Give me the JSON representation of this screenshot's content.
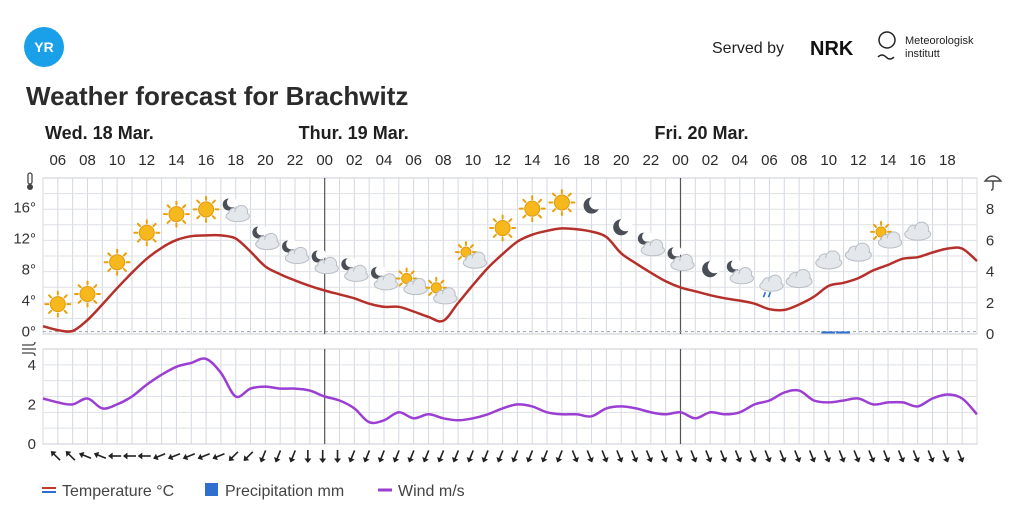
{
  "header": {
    "logo_text": "YR",
    "served_by": "Served by",
    "nrk_logo": "NRK",
    "met_line1": "Meteorologisk",
    "met_line2": "institutt"
  },
  "chart_data": {
    "type": "line",
    "title": "Weather forecast for Brachwitz",
    "days": [
      {
        "label": "Wed. 18 Mar.",
        "hour": 5
      },
      {
        "label": "Thur. 19 Mar.",
        "hour": 24
      },
      {
        "label": "Fri. 20 Mar.",
        "hour": 48
      }
    ],
    "x_tick_labels": [
      "06",
      "08",
      "10",
      "12",
      "14",
      "16",
      "18",
      "20",
      "22",
      "00",
      "02",
      "04",
      "06",
      "08",
      "10",
      "12",
      "14",
      "16",
      "18",
      "20",
      "22",
      "00",
      "02",
      "04",
      "06",
      "08",
      "10",
      "12",
      "14",
      "16",
      "18"
    ],
    "temp_axis": {
      "ticks": [
        0,
        4,
        8,
        12,
        16
      ],
      "labels": [
        "0°",
        "4°",
        "8°",
        "12°",
        "16°"
      ],
      "range": [
        -0.3,
        19.8
      ]
    },
    "precip_axis": {
      "ticks": [
        0,
        2,
        4,
        6,
        8
      ],
      "labels": [
        "0",
        "2",
        "4",
        "6",
        "8"
      ]
    },
    "wind_axis": {
      "ticks": [
        0,
        2,
        4
      ],
      "labels": [
        "0",
        "2",
        "4"
      ],
      "range": [
        0,
        4.8
      ]
    },
    "series": [
      {
        "name": "Temperature °C",
        "color": "#b5302b",
        "points": [
          [
            5,
            0.7
          ],
          [
            6,
            0.2
          ],
          [
            7,
            0.1
          ],
          [
            8,
            1.5
          ],
          [
            9,
            3.5
          ],
          [
            10,
            5.6
          ],
          [
            11,
            7.6
          ],
          [
            12,
            9.4
          ],
          [
            13,
            10.8
          ],
          [
            14,
            11.8
          ],
          [
            15,
            12.3
          ],
          [
            16,
            12.4
          ],
          [
            17,
            12.4
          ],
          [
            18,
            12
          ],
          [
            19,
            10.3
          ],
          [
            20,
            8.4
          ],
          [
            21,
            7.4
          ],
          [
            22,
            6.6
          ],
          [
            23,
            5.9
          ],
          [
            24,
            5.3
          ],
          [
            25,
            4.8
          ],
          [
            26,
            4.3
          ],
          [
            27,
            3.6
          ],
          [
            28,
            3.2
          ],
          [
            29,
            3.2
          ],
          [
            30,
            2.6
          ],
          [
            31,
            1.9
          ],
          [
            32,
            1.4
          ],
          [
            33,
            3.7
          ],
          [
            34,
            6
          ],
          [
            35,
            8.2
          ],
          [
            36,
            10
          ],
          [
            37,
            11.6
          ],
          [
            38,
            12.5
          ],
          [
            39,
            13
          ],
          [
            40,
            13.3
          ],
          [
            41,
            13.2
          ],
          [
            42,
            12.9
          ],
          [
            43,
            12.2
          ],
          [
            44,
            10.1
          ],
          [
            45,
            8.8
          ],
          [
            46,
            7.6
          ],
          [
            47,
            6.5
          ],
          [
            48,
            5.7
          ],
          [
            49,
            5.2
          ],
          [
            50,
            4.7
          ],
          [
            51,
            4.3
          ],
          [
            52,
            4
          ],
          [
            53,
            3.6
          ],
          [
            54,
            2.9
          ],
          [
            55,
            2.8
          ],
          [
            56,
            3.5
          ],
          [
            57,
            4.5
          ],
          [
            58,
            5.9
          ],
          [
            59,
            6.3
          ],
          [
            60,
            6.9
          ],
          [
            61,
            7.9
          ],
          [
            62,
            8.6
          ],
          [
            63,
            9.4
          ],
          [
            64,
            9.6
          ],
          [
            65,
            10.2
          ],
          [
            66,
            10.7
          ],
          [
            67,
            10.7
          ],
          [
            68,
            9.1
          ]
        ]
      },
      {
        "name": "Precipitation mm",
        "color": "#2f6fd0",
        "points": [
          [
            58,
            0.1
          ],
          [
            59,
            0.1
          ]
        ]
      },
      {
        "name": "Wind m/s",
        "color": "#9b3fd3",
        "points": [
          [
            5,
            2.3
          ],
          [
            6,
            2.1
          ],
          [
            7,
            2
          ],
          [
            8,
            2.3
          ],
          [
            9,
            1.8
          ],
          [
            10,
            2
          ],
          [
            11,
            2.4
          ],
          [
            12,
            3
          ],
          [
            13,
            3.5
          ],
          [
            14,
            3.9
          ],
          [
            15,
            4.1
          ],
          [
            16,
            4.3
          ],
          [
            17,
            3.6
          ],
          [
            18,
            2.4
          ],
          [
            19,
            2.8
          ],
          [
            20,
            2.9
          ],
          [
            21,
            2.8
          ],
          [
            22,
            2.8
          ],
          [
            23,
            2.7
          ],
          [
            24,
            2.4
          ],
          [
            25,
            2.2
          ],
          [
            26,
            1.8
          ],
          [
            27,
            1.1
          ],
          [
            28,
            1.2
          ],
          [
            29,
            1.6
          ],
          [
            30,
            1.3
          ],
          [
            31,
            1.5
          ],
          [
            32,
            1.3
          ],
          [
            33,
            1.2
          ],
          [
            34,
            1.3
          ],
          [
            35,
            1.5
          ],
          [
            36,
            1.8
          ],
          [
            37,
            2
          ],
          [
            38,
            1.9
          ],
          [
            39,
            1.6
          ],
          [
            40,
            1.5
          ],
          [
            41,
            1.5
          ],
          [
            42,
            1.4
          ],
          [
            43,
            1.8
          ],
          [
            44,
            1.9
          ],
          [
            45,
            1.8
          ],
          [
            46,
            1.6
          ],
          [
            47,
            1.5
          ],
          [
            48,
            1.6
          ],
          [
            49,
            1.3
          ],
          [
            50,
            1.6
          ],
          [
            51,
            1.5
          ],
          [
            52,
            1.6
          ],
          [
            53,
            2
          ],
          [
            54,
            2.2
          ],
          [
            55,
            2.6
          ],
          [
            56,
            2.7
          ],
          [
            57,
            2.2
          ],
          [
            58,
            2.1
          ],
          [
            59,
            2.2
          ],
          [
            60,
            2.3
          ],
          [
            61,
            2
          ],
          [
            62,
            2.1
          ],
          [
            63,
            2.1
          ],
          [
            64,
            1.9
          ],
          [
            65,
            2.3
          ],
          [
            66,
            2.5
          ],
          [
            67,
            2.3
          ],
          [
            68,
            1.5
          ]
        ]
      }
    ],
    "weather_icons": [
      {
        "hour": 6,
        "symbol": "sun"
      },
      {
        "hour": 8,
        "symbol": "sun"
      },
      {
        "hour": 10,
        "symbol": "sun"
      },
      {
        "hour": 12,
        "symbol": "sun"
      },
      {
        "hour": 14,
        "symbol": "sun"
      },
      {
        "hour": 16,
        "symbol": "sun"
      },
      {
        "hour": 18,
        "symbol": "moon-cloud"
      },
      {
        "hour": 20,
        "symbol": "moon-cloud"
      },
      {
        "hour": 22,
        "symbol": "moon-cloud"
      },
      {
        "hour": 24,
        "symbol": "moon-cloud"
      },
      {
        "hour": 26,
        "symbol": "moon-cloud"
      },
      {
        "hour": 28,
        "symbol": "moon-cloud"
      },
      {
        "hour": 30,
        "symbol": "sun-cloud"
      },
      {
        "hour": 32,
        "symbol": "sun-cloud"
      },
      {
        "hour": 34,
        "symbol": "sun-cloud"
      },
      {
        "hour": 36,
        "symbol": "sun"
      },
      {
        "hour": 38,
        "symbol": "sun"
      },
      {
        "hour": 40,
        "symbol": "sun"
      },
      {
        "hour": 42,
        "symbol": "moon"
      },
      {
        "hour": 44,
        "symbol": "moon"
      },
      {
        "hour": 46,
        "symbol": "moon-cloud"
      },
      {
        "hour": 48,
        "symbol": "moon-cloud"
      },
      {
        "hour": 50,
        "symbol": "moon"
      },
      {
        "hour": 52,
        "symbol": "moon-cloud"
      },
      {
        "hour": 54,
        "symbol": "cloud-rain"
      },
      {
        "hour": 56,
        "symbol": "cloud"
      },
      {
        "hour": 58,
        "symbol": "cloud"
      },
      {
        "hour": 60,
        "symbol": "cloud"
      },
      {
        "hour": 62,
        "symbol": "sun-cloud"
      },
      {
        "hour": 64,
        "symbol": "cloud"
      }
    ],
    "wind_directions_deg": [
      135,
      135,
      112,
      112,
      90,
      90,
      90,
      68,
      68,
      68,
      68,
      68,
      45,
      45,
      22,
      22,
      22,
      0,
      0,
      0,
      22,
      22,
      22,
      22,
      22,
      22,
      22,
      22,
      22,
      22,
      22,
      22,
      22,
      22,
      22,
      -22,
      -22,
      -22,
      -22,
      -22,
      -22,
      -22,
      -22,
      -22,
      -22,
      -22,
      -22,
      -22,
      -22,
      -22,
      -22,
      -22,
      -22,
      -22,
      -22,
      -22,
      -22,
      -22,
      -22,
      -22,
      -22,
      -22
    ],
    "legend": [
      {
        "label": "Temperature °C",
        "color": "#c0392b"
      },
      {
        "label": "Precipitation mm",
        "color": "#2f6fd0"
      },
      {
        "label": "Wind m/s",
        "color": "#9b3fd3"
      }
    ],
    "grid": true
  }
}
